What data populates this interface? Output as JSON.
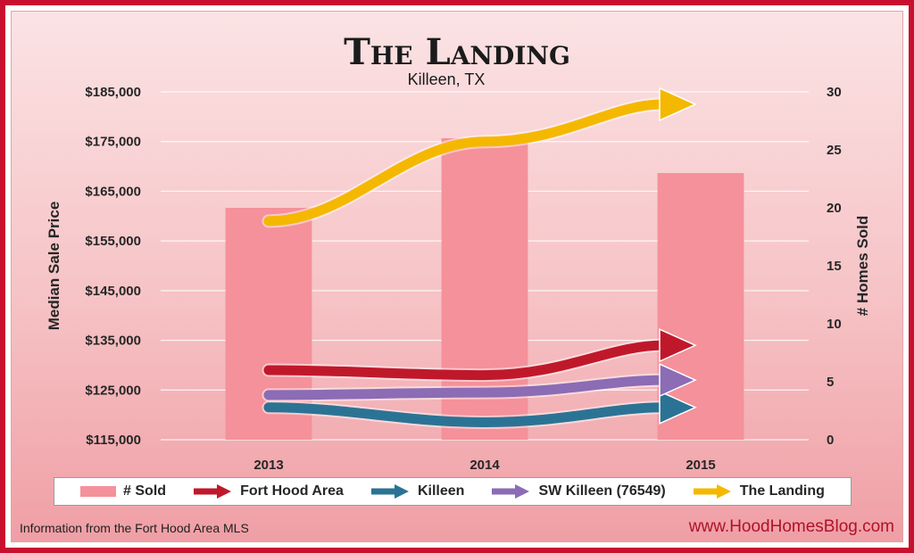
{
  "chart_data": {
    "type": "bar",
    "title": "The Landing",
    "subtitle": "Killeen, TX",
    "categories": [
      "2013",
      "2014",
      "2015"
    ],
    "y_left": {
      "label": "Median Sale Price",
      "range": [
        115000,
        185000
      ],
      "ticks": [
        "$115,000",
        "$125,000",
        "$135,000",
        "$145,000",
        "$155,000",
        "$165,000",
        "$175,000",
        "$185,000"
      ],
      "tick_values": [
        115000,
        125000,
        135000,
        145000,
        155000,
        165000,
        175000,
        185000
      ]
    },
    "y_right": {
      "label": "# Homes Sold",
      "range": [
        0,
        30
      ],
      "ticks": [
        "0",
        "5",
        "10",
        "15",
        "20",
        "25",
        "30"
      ],
      "tick_values": [
        0,
        5,
        10,
        15,
        20,
        25,
        30
      ]
    },
    "bars": {
      "name": "# Sold",
      "color": "#f4919a",
      "values": [
        20,
        26,
        23
      ]
    },
    "series": [
      {
        "name": "Fort Hood Area",
        "color": "#c0182b",
        "values": [
          129000,
          128000,
          134000
        ]
      },
      {
        "name": "Killeen",
        "color": "#2b7394",
        "values": [
          121500,
          118500,
          121500
        ]
      },
      {
        "name": "SW Killeen (76549)",
        "color": "#8b6cb5",
        "values": [
          124000,
          124500,
          127000
        ]
      },
      {
        "name": "The Landing",
        "color": "#f5b800",
        "values": [
          159000,
          175000,
          182500
        ]
      }
    ],
    "grid": true,
    "legend": "bottom"
  },
  "footer": {
    "left": "Information from the Fort Hood Area MLS",
    "right": "www.HoodHomesBlog.com"
  }
}
